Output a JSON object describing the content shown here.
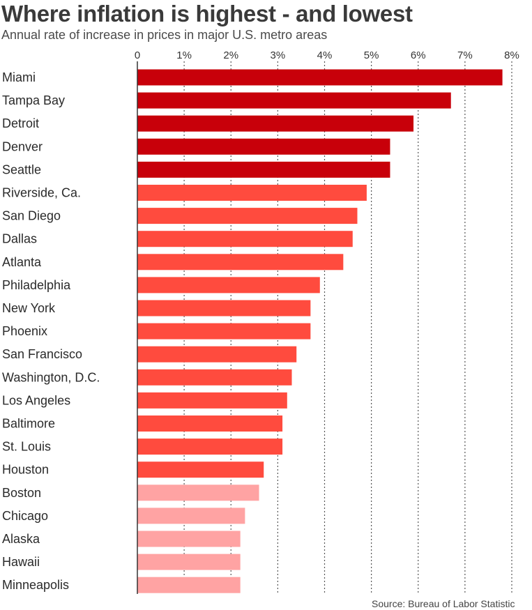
{
  "header": {
    "title": "Where inflation is highest - and lowest",
    "subtitle": "Annual rate of increase in prices in major U.S. metro areas"
  },
  "footer": {
    "source": "Source: Bureau of Labor Statistic"
  },
  "colors": {
    "highest": "#c8000a",
    "middle": "#ff4b3e",
    "lowest": "#ffa3a3",
    "grid": "#555555",
    "axis": "#333333"
  },
  "chart_data": {
    "type": "bar",
    "orientation": "horizontal",
    "title": "Where inflation is highest - and lowest",
    "subtitle": "Annual rate of increase in prices in major U.S. metro areas",
    "xlim": [
      0,
      8
    ],
    "x_ticks": [
      0,
      1,
      2,
      3,
      4,
      5,
      6,
      7,
      8
    ],
    "x_tick_labels": [
      "0",
      "1%",
      "2%",
      "3%",
      "4%",
      "5%",
      "6%",
      "7%",
      "8%"
    ],
    "x_axis_position": "top",
    "grid": "vertical dotted",
    "categories": [
      "Miami",
      "Tampa Bay",
      "Detroit",
      "Denver",
      "Seattle",
      "Riverside, Ca.",
      "San  Diego",
      "Dallas",
      "Atlanta",
      "Philadelphia",
      "New York",
      "Phoenix",
      "San Francisco",
      "Washington, D.C.",
      "Los Angeles",
      "Baltimore",
      "St. Louis",
      "Houston",
      "Boston",
      "Chicago",
      "Alaska",
      "Hawaii",
      "Minneapolis"
    ],
    "values": [
      7.8,
      6.7,
      5.9,
      5.4,
      5.4,
      4.9,
      4.7,
      4.6,
      4.4,
      3.9,
      3.7,
      3.7,
      3.4,
      3.3,
      3.2,
      3.1,
      3.1,
      2.7,
      2.6,
      2.3,
      2.2,
      2.2,
      2.2
    ],
    "color_groups": [
      "highest",
      "highest",
      "highest",
      "highest",
      "highest",
      "middle",
      "middle",
      "middle",
      "middle",
      "middle",
      "middle",
      "middle",
      "middle",
      "middle",
      "middle",
      "middle",
      "middle",
      "middle",
      "lowest",
      "lowest",
      "lowest",
      "lowest",
      "lowest"
    ],
    "source": "Source: Bureau of Labor Statistic"
  }
}
